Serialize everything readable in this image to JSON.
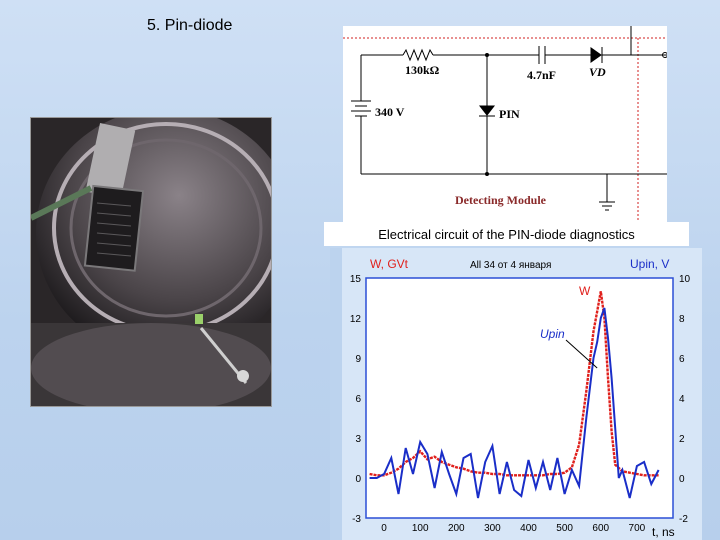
{
  "slide": {
    "title": "5. Pin-diode"
  },
  "circuit": {
    "resistor": "130kΩ",
    "capacitor": "4.7nF",
    "diode_vd": "VD",
    "voltage": "340 V",
    "pin": "PIN",
    "module": "Detecting Module",
    "caption": "Electrical circuit of the PIN-diode diagnostics"
  },
  "chart_data": {
    "type": "line",
    "title": "All 34 от 4 января",
    "xlabel": "t, ns",
    "ylabel_left": "W, GVt",
    "ylabel_right": "Upin, V",
    "xlim": [
      -50,
      800
    ],
    "ylim_left": [
      -3,
      15
    ],
    "ylim_right": [
      -2,
      10
    ],
    "x_ticks": [
      0,
      100,
      200,
      300,
      400,
      500,
      600,
      700
    ],
    "y_ticks_left": [
      -3,
      0,
      3,
      6,
      9,
      12,
      15
    ],
    "y_ticks_right": [
      -2,
      0,
      2,
      4,
      6,
      8,
      10
    ],
    "annotations": {
      "w_label": "W",
      "upin_label": "Upin"
    },
    "colors": {
      "W": "#e0201c",
      "Upin": "#1a2ec8",
      "axes": "#2b4fd6",
      "grid": "#1a1aff"
    },
    "series": [
      {
        "name": "W",
        "axis": "left",
        "x": [
          -40,
          -20,
          0,
          20,
          40,
          60,
          80,
          100,
          120,
          140,
          160,
          180,
          200,
          220,
          240,
          260,
          280,
          300,
          320,
          340,
          360,
          380,
          400,
          420,
          440,
          460,
          480,
          500,
          520,
          540,
          560,
          580,
          590,
          600,
          610,
          620,
          630,
          640,
          660,
          680,
          700,
          720,
          740,
          760
        ],
        "y": [
          0.3,
          0.2,
          0.2,
          0.4,
          0.7,
          1.2,
          1.5,
          2.0,
          1.4,
          1.6,
          1.2,
          1.0,
          0.8,
          0.7,
          0.5,
          0.4,
          0.4,
          0.3,
          0.3,
          0.2,
          0.2,
          0.2,
          0.2,
          0.2,
          0.2,
          0.3,
          0.3,
          0.4,
          0.8,
          2.5,
          6.5,
          11.0,
          12.5,
          14.0,
          12.0,
          7.5,
          3.5,
          1.0,
          0.5,
          0.4,
          0.3,
          0.2,
          0.2,
          0.2
        ]
      },
      {
        "name": "Upin",
        "axis": "right",
        "x": [
          -40,
          -20,
          0,
          20,
          40,
          60,
          80,
          100,
          120,
          140,
          160,
          180,
          200,
          220,
          240,
          260,
          280,
          300,
          320,
          340,
          360,
          380,
          400,
          420,
          440,
          460,
          480,
          500,
          520,
          540,
          560,
          580,
          590,
          600,
          610,
          620,
          630,
          640,
          650,
          660,
          680,
          700,
          720,
          740,
          760
        ],
        "y": [
          0.0,
          0.0,
          0.2,
          1.0,
          -0.8,
          1.5,
          0.2,
          1.8,
          1.2,
          -0.5,
          1.3,
          0.2,
          -0.8,
          1.0,
          1.2,
          -1.0,
          0.8,
          1.6,
          -0.8,
          0.8,
          -0.6,
          -0.9,
          0.9,
          -0.5,
          0.8,
          -0.6,
          1.0,
          -0.8,
          0.4,
          -0.4,
          3.0,
          6.0,
          6.8,
          8.0,
          8.5,
          7.0,
          5.0,
          2.5,
          0.0,
          0.4,
          -1.0,
          0.6,
          0.8,
          -0.3,
          0.4
        ]
      }
    ]
  }
}
